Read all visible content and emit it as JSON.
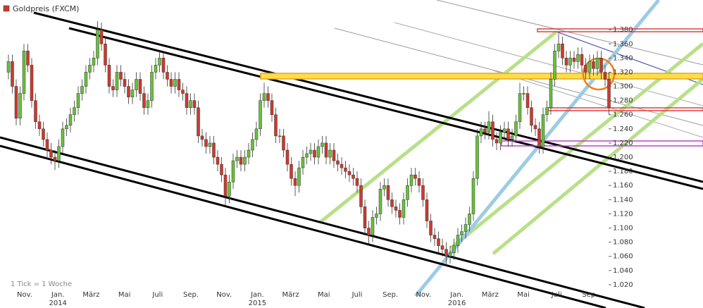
{
  "chart_data": {
    "type": "candlestick",
    "title": "Goldpreis (FXCM)",
    "note": "1 Tick = 1 Woche",
    "up_color": "#66c23a",
    "down_color": "#cc3a2e",
    "ylim": [
      1.004,
      1.412
    ],
    "yticks": [
      {
        "value": 1.02,
        "label": "1.020"
      },
      {
        "value": 1.04,
        "label": "1.040"
      },
      {
        "value": 1.06,
        "label": "1.060"
      },
      {
        "value": 1.08,
        "label": "1.080"
      },
      {
        "value": 1.1,
        "label": "1.100"
      },
      {
        "value": 1.12,
        "label": "1.120"
      },
      {
        "value": 1.14,
        "label": "1.140"
      },
      {
        "value": 1.16,
        "label": "1.160"
      },
      {
        "value": 1.18,
        "label": "1.180"
      },
      {
        "value": 1.2,
        "label": "1.200"
      },
      {
        "value": 1.22,
        "label": "1.220"
      },
      {
        "value": 1.24,
        "label": "1.240"
      },
      {
        "value": 1.26,
        "label": "1.260"
      },
      {
        "value": 1.28,
        "label": "1.280"
      },
      {
        "value": 1.3,
        "label": "1.300"
      },
      {
        "value": 1.32,
        "label": "1.320"
      },
      {
        "value": 1.34,
        "label": "1.340"
      },
      {
        "value": 1.36,
        "label": "1.360"
      },
      {
        "value": 1.38,
        "label": "1.380"
      }
    ],
    "x_labels": [
      "Nov.",
      "Jan.",
      "März",
      "Mai",
      "Juli",
      "Sep.",
      "Nov.",
      "Jan.",
      "März",
      "Mai",
      "Juli",
      "Sep.",
      "Nov.",
      "Jan.",
      "März",
      "Mai",
      "Juli",
      "Sep."
    ],
    "years": [
      "2014",
      "2015",
      "2016"
    ],
    "open": [
      1.32,
      1.335,
      1.3,
      1.255,
      1.29,
      1.35,
      1.33,
      1.28,
      1.25,
      1.24,
      1.225,
      1.21,
      1.2,
      1.195,
      1.215,
      1.24,
      1.245,
      1.26,
      1.27,
      1.29,
      1.3,
      1.32,
      1.33,
      1.34,
      1.38,
      1.36,
      1.33,
      1.3,
      1.295,
      1.32,
      1.31,
      1.3,
      1.285,
      1.295,
      1.31,
      1.29,
      1.27,
      1.28,
      1.32,
      1.33,
      1.34,
      1.32,
      1.31,
      1.3,
      1.31,
      1.295,
      1.29,
      1.27,
      1.28,
      1.27,
      1.23,
      1.225,
      1.215,
      1.22,
      1.2,
      1.19,
      1.175,
      1.145,
      1.165,
      1.195,
      1.2,
      1.19,
      1.2,
      1.21,
      1.225,
      1.24,
      1.28,
      1.29,
      1.28,
      1.26,
      1.23,
      1.23,
      1.21,
      1.19,
      1.17,
      1.16,
      1.185,
      1.2,
      1.205,
      1.21,
      1.2,
      1.215,
      1.22,
      1.2,
      1.21,
      1.195,
      1.19,
      1.185,
      1.18,
      1.175,
      1.17,
      1.16,
      1.13,
      1.1,
      1.09,
      1.115,
      1.12,
      1.155,
      1.16,
      1.14,
      1.13,
      1.125,
      1.115,
      1.14,
      1.16,
      1.175,
      1.17,
      1.16,
      1.14,
      1.11,
      1.09,
      1.085,
      1.075,
      1.07,
      1.06,
      1.065,
      1.075,
      1.09,
      1.095,
      1.105,
      1.12,
      1.17,
      1.23,
      1.24,
      1.235,
      1.25,
      1.225,
      1.22,
      1.235,
      1.24,
      1.225,
      1.23,
      1.25,
      1.29,
      1.29,
      1.27,
      1.245,
      1.24,
      1.215,
      1.26,
      1.27,
      1.31,
      1.35,
      1.36,
      1.34,
      1.33,
      1.34,
      1.335,
      1.345,
      1.33,
      1.32,
      1.335,
      1.325,
      1.34,
      1.32,
      1.31
    ],
    "high": [
      1.345,
      1.345,
      1.31,
      1.3,
      1.36,
      1.36,
      1.34,
      1.29,
      1.26,
      1.25,
      1.235,
      1.22,
      1.21,
      1.225,
      1.25,
      1.255,
      1.27,
      1.28,
      1.3,
      1.31,
      1.33,
      1.34,
      1.35,
      1.392,
      1.39,
      1.37,
      1.34,
      1.31,
      1.33,
      1.33,
      1.32,
      1.31,
      1.305,
      1.32,
      1.32,
      1.3,
      1.29,
      1.33,
      1.34,
      1.35,
      1.35,
      1.33,
      1.32,
      1.32,
      1.32,
      1.305,
      1.3,
      1.29,
      1.29,
      1.28,
      1.24,
      1.235,
      1.23,
      1.23,
      1.21,
      1.2,
      1.185,
      1.175,
      1.205,
      1.21,
      1.21,
      1.21,
      1.22,
      1.235,
      1.25,
      1.29,
      1.305,
      1.3,
      1.29,
      1.27,
      1.24,
      1.24,
      1.22,
      1.2,
      1.18,
      1.195,
      1.21,
      1.215,
      1.22,
      1.22,
      1.225,
      1.23,
      1.23,
      1.22,
      1.22,
      1.205,
      1.2,
      1.195,
      1.19,
      1.185,
      1.18,
      1.17,
      1.14,
      1.11,
      1.125,
      1.13,
      1.165,
      1.17,
      1.17,
      1.15,
      1.14,
      1.135,
      1.15,
      1.17,
      1.185,
      1.185,
      1.18,
      1.17,
      1.15,
      1.12,
      1.1,
      1.095,
      1.085,
      1.08,
      1.075,
      1.085,
      1.1,
      1.105,
      1.115,
      1.13,
      1.18,
      1.24,
      1.25,
      1.25,
      1.265,
      1.26,
      1.235,
      1.245,
      1.25,
      1.25,
      1.24,
      1.26,
      1.305,
      1.3,
      1.3,
      1.28,
      1.255,
      1.25,
      1.27,
      1.28,
      1.32,
      1.36,
      1.375,
      1.37,
      1.35,
      1.35,
      1.35,
      1.355,
      1.355,
      1.34,
      1.345,
      1.345,
      1.35,
      1.35,
      1.33,
      1.32
    ],
    "low": [
      1.31,
      1.29,
      1.245,
      1.245,
      1.28,
      1.32,
      1.27,
      1.24,
      1.23,
      1.215,
      1.2,
      1.19,
      1.182,
      1.185,
      1.205,
      1.23,
      1.235,
      1.25,
      1.26,
      1.28,
      1.29,
      1.31,
      1.32,
      1.33,
      1.35,
      1.32,
      1.29,
      1.285,
      1.285,
      1.3,
      1.29,
      1.275,
      1.275,
      1.285,
      1.28,
      1.26,
      1.26,
      1.27,
      1.31,
      1.32,
      1.31,
      1.3,
      1.29,
      1.29,
      1.285,
      1.28,
      1.26,
      1.26,
      1.26,
      1.22,
      1.215,
      1.205,
      1.205,
      1.19,
      1.18,
      1.165,
      1.132,
      1.135,
      1.155,
      1.185,
      1.18,
      1.18,
      1.19,
      1.2,
      1.215,
      1.23,
      1.27,
      1.27,
      1.25,
      1.22,
      1.22,
      1.2,
      1.18,
      1.16,
      1.145,
      1.15,
      1.175,
      1.19,
      1.195,
      1.19,
      1.19,
      1.205,
      1.19,
      1.19,
      1.185,
      1.18,
      1.175,
      1.17,
      1.165,
      1.16,
      1.15,
      1.12,
      1.09,
      1.078,
      1.08,
      1.105,
      1.11,
      1.145,
      1.13,
      1.12,
      1.115,
      1.105,
      1.105,
      1.13,
      1.15,
      1.16,
      1.15,
      1.13,
      1.1,
      1.08,
      1.075,
      1.065,
      1.06,
      1.046,
      1.05,
      1.055,
      1.065,
      1.08,
      1.085,
      1.095,
      1.11,
      1.16,
      1.22,
      1.225,
      1.225,
      1.215,
      1.21,
      1.21,
      1.225,
      1.215,
      1.215,
      1.22,
      1.24,
      1.28,
      1.26,
      1.235,
      1.23,
      1.205,
      1.205,
      1.25,
      1.26,
      1.3,
      1.34,
      1.33,
      1.32,
      1.32,
      1.325,
      1.325,
      1.32,
      1.31,
      1.31,
      1.315,
      1.315,
      1.31,
      1.3,
      1.26
    ],
    "close": [
      1.335,
      1.3,
      1.255,
      1.29,
      1.35,
      1.33,
      1.28,
      1.25,
      1.24,
      1.225,
      1.21,
      1.2,
      1.195,
      1.215,
      1.24,
      1.245,
      1.26,
      1.27,
      1.29,
      1.3,
      1.32,
      1.33,
      1.34,
      1.38,
      1.36,
      1.33,
      1.3,
      1.295,
      1.32,
      1.31,
      1.3,
      1.285,
      1.295,
      1.31,
      1.29,
      1.27,
      1.28,
      1.32,
      1.33,
      1.34,
      1.32,
      1.31,
      1.3,
      1.31,
      1.295,
      1.29,
      1.27,
      1.28,
      1.27,
      1.23,
      1.225,
      1.215,
      1.22,
      1.2,
      1.19,
      1.175,
      1.145,
      1.165,
      1.195,
      1.2,
      1.19,
      1.2,
      1.21,
      1.225,
      1.24,
      1.28,
      1.29,
      1.28,
      1.26,
      1.23,
      1.23,
      1.21,
      1.19,
      1.17,
      1.16,
      1.185,
      1.2,
      1.205,
      1.21,
      1.2,
      1.215,
      1.22,
      1.2,
      1.21,
      1.195,
      1.19,
      1.185,
      1.18,
      1.175,
      1.17,
      1.16,
      1.13,
      1.1,
      1.09,
      1.115,
      1.12,
      1.155,
      1.16,
      1.14,
      1.13,
      1.125,
      1.115,
      1.14,
      1.16,
      1.175,
      1.17,
      1.16,
      1.14,
      1.11,
      1.09,
      1.085,
      1.075,
      1.07,
      1.06,
      1.065,
      1.075,
      1.09,
      1.095,
      1.105,
      1.12,
      1.17,
      1.23,
      1.24,
      1.235,
      1.25,
      1.225,
      1.22,
      1.235,
      1.24,
      1.225,
      1.23,
      1.25,
      1.29,
      1.29,
      1.27,
      1.245,
      1.24,
      1.215,
      1.26,
      1.27,
      1.31,
      1.35,
      1.36,
      1.34,
      1.33,
      1.34,
      1.335,
      1.345,
      1.33,
      1.32,
      1.335,
      1.325,
      1.34,
      1.32,
      1.31,
      1.27
    ]
  }
}
